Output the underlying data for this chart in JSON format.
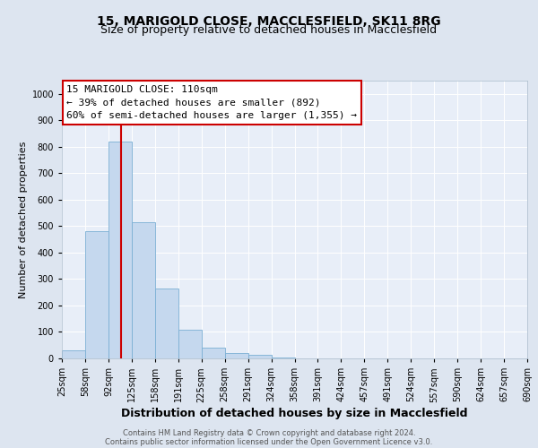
{
  "title": "15, MARIGOLD CLOSE, MACCLESFIELD, SK11 8RG",
  "subtitle": "Size of property relative to detached houses in Macclesfield",
  "xlabel": "Distribution of detached houses by size in Macclesfield",
  "ylabel": "Number of detached properties",
  "bar_values": [
    30,
    480,
    820,
    515,
    265,
    110,
    40,
    20,
    15,
    5,
    0,
    0,
    0,
    0,
    0,
    0,
    0,
    0,
    0,
    0
  ],
  "bin_labels": [
    "25sqm",
    "58sqm",
    "92sqm",
    "125sqm",
    "158sqm",
    "191sqm",
    "225sqm",
    "258sqm",
    "291sqm",
    "324sqm",
    "358sqm",
    "391sqm",
    "424sqm",
    "457sqm",
    "491sqm",
    "524sqm",
    "557sqm",
    "590sqm",
    "624sqm",
    "657sqm",
    "690sqm"
  ],
  "bar_color": "#c5d8ee",
  "bar_edge_color": "#7bafd4",
  "vline_x_index": 2.55,
  "vline_color": "#cc0000",
  "annotation_line1": "15 MARIGOLD CLOSE: 110sqm",
  "annotation_line2": "← 39% of detached houses are smaller (892)",
  "annotation_line3": "60% of semi-detached houses are larger (1,355) →",
  "annotation_box_facecolor": "#ffffff",
  "annotation_box_edgecolor": "#cc0000",
  "ylim": [
    0,
    1050
  ],
  "yticks": [
    0,
    100,
    200,
    300,
    400,
    500,
    600,
    700,
    800,
    900,
    1000
  ],
  "bg_color": "#dde5f0",
  "plot_bg_color": "#e8eef8",
  "grid_color": "#ffffff",
  "footer_line1": "Contains HM Land Registry data © Crown copyright and database right 2024.",
  "footer_line2": "Contains public sector information licensed under the Open Government Licence v3.0.",
  "title_fontsize": 10,
  "subtitle_fontsize": 9,
  "xlabel_fontsize": 9,
  "ylabel_fontsize": 8,
  "tick_fontsize": 7,
  "annotation_fontsize": 8,
  "footer_fontsize": 6
}
